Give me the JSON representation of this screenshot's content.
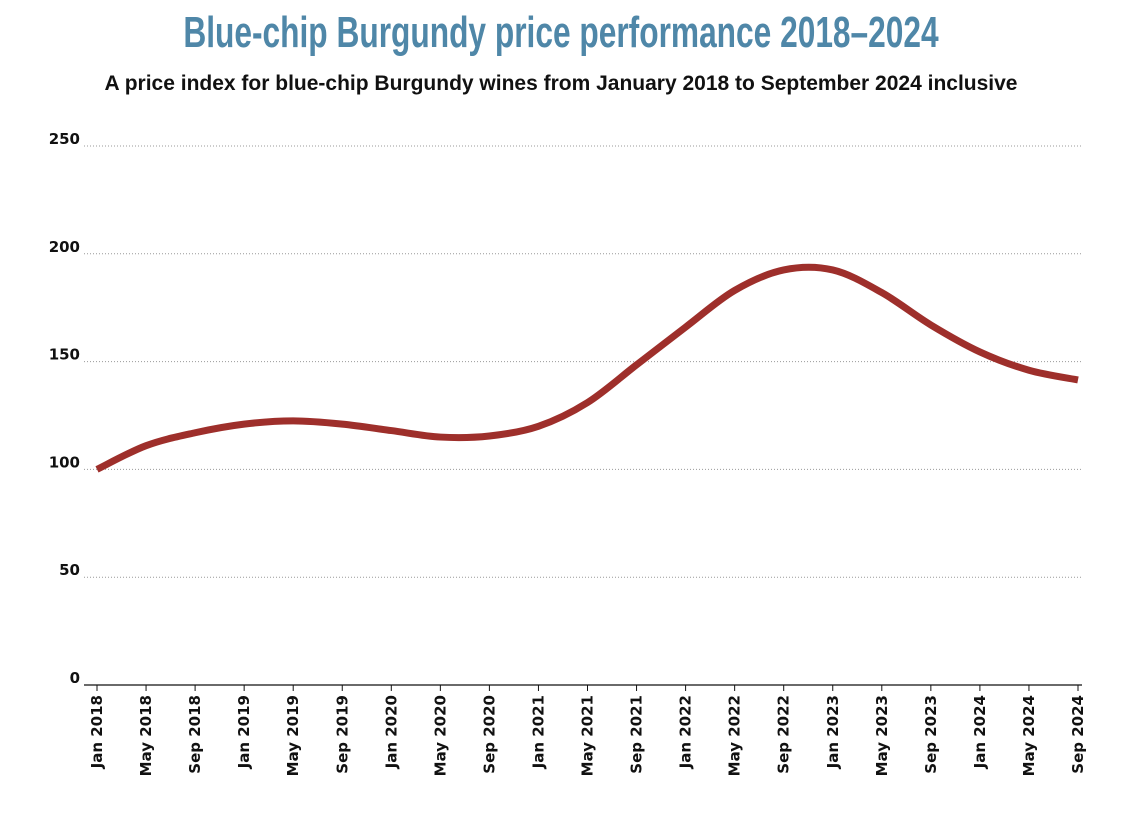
{
  "chart_data": {
    "type": "line",
    "title": "Blue-chip Burgundy price performance 2018–2024",
    "subtitle": "A price index for blue-chip Burgundy wines from January 2018 to September 2024 inclusive",
    "xlabel": "",
    "ylabel": "",
    "ylim": [
      0,
      250
    ],
    "yticks": [
      0,
      50,
      100,
      150,
      200,
      250
    ],
    "grid": true,
    "line_color": "#9e2f2b",
    "title_color": "#4f87a8",
    "categories": [
      "Jan 2018",
      "May 2018",
      "Sep 2018",
      "Jan 2019",
      "May 2019",
      "Sep 2019",
      "Jan 2020",
      "May 2020",
      "Sep 2020",
      "Jan 2021",
      "May 2021",
      "Sep 2021",
      "Jan 2022",
      "May 2022",
      "Sep 2022",
      "Jan 2023",
      "May 2023",
      "Sep 2023",
      "Jan 2024",
      "May 2024",
      "Sep 2024"
    ],
    "series": [
      {
        "values": [
          100,
          111,
          117,
          121,
          122.5,
          121,
          118,
          115,
          115.5,
          120,
          131,
          148.5,
          166,
          183,
          192.5,
          192.5,
          182,
          167,
          154.5,
          146,
          141.5
        ]
      }
    ]
  }
}
